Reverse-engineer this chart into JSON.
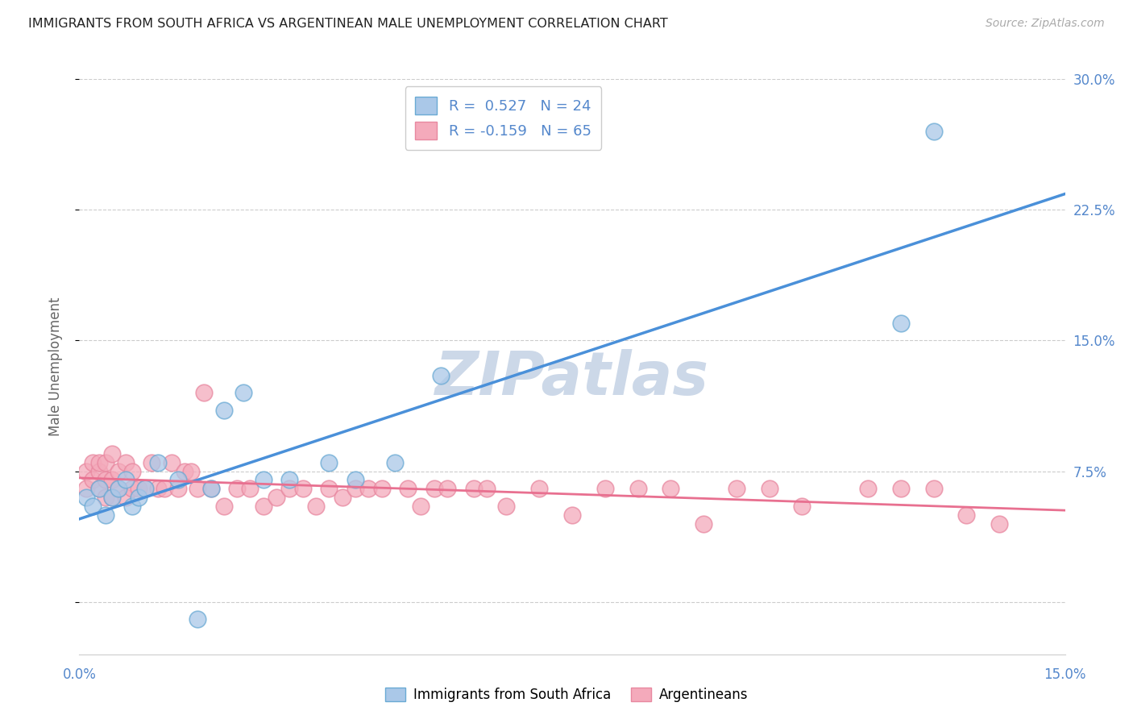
{
  "title": "IMMIGRANTS FROM SOUTH AFRICA VS ARGENTINEAN MALE UNEMPLOYMENT CORRELATION CHART",
  "source": "Source: ZipAtlas.com",
  "ylabel": "Male Unemployment",
  "watermark": "ZIPatlas",
  "legend_entries": [
    {
      "label": "Immigrants from South Africa",
      "R": 0.527,
      "N": 24
    },
    {
      "label": "Argentineans",
      "R": -0.159,
      "N": 65
    }
  ],
  "xmin": 0.0,
  "xmax": 0.15,
  "ymin": -0.03,
  "ymax": 0.3,
  "yticks": [
    0.0,
    0.075,
    0.15,
    0.225,
    0.3
  ],
  "ytick_labels": [
    "",
    "7.5%",
    "15.0%",
    "22.5%",
    "30.0%"
  ],
  "blue_scatter_x": [
    0.001,
    0.002,
    0.003,
    0.004,
    0.005,
    0.006,
    0.007,
    0.008,
    0.009,
    0.01,
    0.012,
    0.015,
    0.018,
    0.02,
    0.022,
    0.025,
    0.028,
    0.032,
    0.038,
    0.042,
    0.048,
    0.055,
    0.125,
    0.13
  ],
  "blue_scatter_y": [
    0.06,
    0.055,
    0.065,
    0.05,
    0.06,
    0.065,
    0.07,
    0.055,
    0.06,
    0.065,
    0.08,
    0.07,
    -0.01,
    0.065,
    0.11,
    0.12,
    0.07,
    0.07,
    0.08,
    0.07,
    0.08,
    0.13,
    0.16,
    0.27
  ],
  "pink_scatter_x": [
    0.001,
    0.001,
    0.002,
    0.002,
    0.003,
    0.003,
    0.003,
    0.004,
    0.004,
    0.004,
    0.005,
    0.005,
    0.005,
    0.006,
    0.006,
    0.007,
    0.007,
    0.008,
    0.008,
    0.009,
    0.01,
    0.011,
    0.012,
    0.013,
    0.014,
    0.015,
    0.016,
    0.017,
    0.018,
    0.019,
    0.02,
    0.022,
    0.024,
    0.026,
    0.028,
    0.03,
    0.032,
    0.034,
    0.036,
    0.038,
    0.04,
    0.042,
    0.044,
    0.046,
    0.05,
    0.052,
    0.054,
    0.056,
    0.06,
    0.062,
    0.065,
    0.07,
    0.075,
    0.08,
    0.085,
    0.09,
    0.095,
    0.1,
    0.105,
    0.11,
    0.12,
    0.125,
    0.13,
    0.135,
    0.14
  ],
  "pink_scatter_y": [
    0.065,
    0.075,
    0.07,
    0.08,
    0.065,
    0.075,
    0.08,
    0.06,
    0.07,
    0.08,
    0.06,
    0.07,
    0.085,
    0.065,
    0.075,
    0.06,
    0.08,
    0.065,
    0.075,
    0.065,
    0.065,
    0.08,
    0.065,
    0.065,
    0.08,
    0.065,
    0.075,
    0.075,
    0.065,
    0.12,
    0.065,
    0.055,
    0.065,
    0.065,
    0.055,
    0.06,
    0.065,
    0.065,
    0.055,
    0.065,
    0.06,
    0.065,
    0.065,
    0.065,
    0.065,
    0.055,
    0.065,
    0.065,
    0.065,
    0.065,
    0.055,
    0.065,
    0.05,
    0.065,
    0.065,
    0.065,
    0.045,
    0.065,
    0.065,
    0.055,
    0.065,
    0.065,
    0.065,
    0.05,
    0.045
  ],
  "blue_line_color": "#4a90d9",
  "pink_line_color": "#e87090",
  "blue_marker_facecolor": "#aac8e8",
  "blue_marker_edgecolor": "#6aaad4",
  "pink_marker_facecolor": "#f4aabb",
  "pink_marker_edgecolor": "#e888a0",
  "background_color": "#ffffff",
  "grid_color": "#cccccc",
  "title_color": "#222222",
  "axis_label_color": "#5588cc",
  "watermark_color": "#ccd8e8"
}
